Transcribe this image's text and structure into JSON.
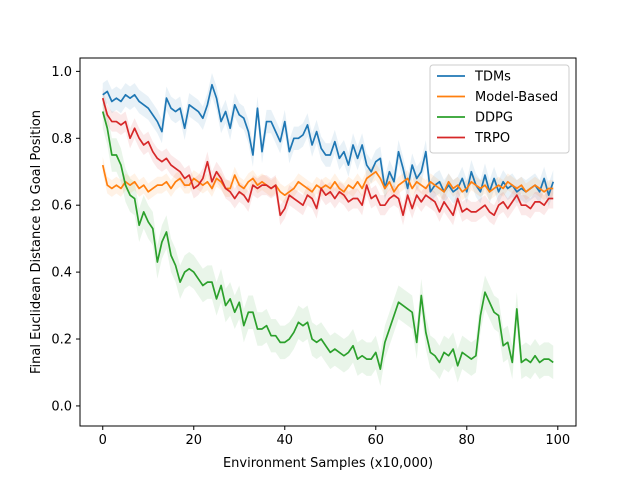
{
  "chart_data": {
    "type": "line",
    "xlabel": "Environment Samples (x10,000)",
    "ylabel": "Final Euclidean Distance to Goal Position",
    "xlim": [
      -5,
      104
    ],
    "ylim": [
      -0.06,
      1.04
    ],
    "xticks": [
      0,
      20,
      40,
      60,
      80,
      100
    ],
    "yticks": [
      0.0,
      0.2,
      0.4,
      0.6,
      0.8,
      1.0
    ],
    "xtick_labels": [
      "0",
      "20",
      "40",
      "60",
      "80",
      "100"
    ],
    "ytick_labels": [
      "0.0",
      "0.2",
      "0.4",
      "0.6",
      "0.8",
      "1.0"
    ],
    "grid": false,
    "legend_position": "top-right",
    "x": [
      0,
      1,
      2,
      3,
      4,
      5,
      6,
      7,
      8,
      9,
      10,
      11,
      12,
      13,
      14,
      15,
      16,
      17,
      18,
      19,
      20,
      21,
      22,
      23,
      24,
      25,
      26,
      27,
      28,
      29,
      30,
      31,
      32,
      33,
      34,
      35,
      36,
      37,
      38,
      39,
      40,
      41,
      42,
      43,
      44,
      45,
      46,
      47,
      48,
      49,
      50,
      51,
      52,
      53,
      54,
      55,
      56,
      57,
      58,
      59,
      60,
      61,
      62,
      63,
      64,
      65,
      66,
      67,
      68,
      69,
      70,
      71,
      72,
      73,
      74,
      75,
      76,
      77,
      78,
      79,
      80,
      81,
      82,
      83,
      84,
      85,
      86,
      87,
      88,
      89,
      90,
      91,
      92,
      93,
      94,
      95,
      96,
      97,
      98,
      99
    ],
    "series": [
      {
        "name": "TDMs",
        "color": "#1f77b4",
        "values": [
          0.93,
          0.94,
          0.91,
          0.92,
          0.91,
          0.93,
          0.92,
          0.93,
          0.91,
          0.9,
          0.89,
          0.87,
          0.85,
          0.82,
          0.92,
          0.89,
          0.88,
          0.89,
          0.83,
          0.9,
          0.89,
          0.88,
          0.86,
          0.9,
          0.96,
          0.92,
          0.85,
          0.88,
          0.83,
          0.9,
          0.87,
          0.86,
          0.82,
          0.75,
          0.89,
          0.76,
          0.85,
          0.85,
          0.82,
          0.79,
          0.85,
          0.76,
          0.8,
          0.8,
          0.81,
          0.84,
          0.78,
          0.82,
          0.77,
          0.75,
          0.75,
          0.79,
          0.74,
          0.76,
          0.72,
          0.78,
          0.74,
          0.78,
          0.72,
          0.7,
          0.73,
          0.74,
          0.65,
          0.7,
          0.67,
          0.76,
          0.71,
          0.65,
          0.72,
          0.68,
          0.7,
          0.76,
          0.64,
          0.66,
          0.67,
          0.64,
          0.66,
          0.64,
          0.65,
          0.68,
          0.64,
          0.7,
          0.66,
          0.64,
          0.69,
          0.64,
          0.68,
          0.64,
          0.67,
          0.65,
          0.66,
          0.64,
          0.65,
          0.64,
          0.65,
          0.66,
          0.64,
          0.68,
          0.63,
          0.67
        ],
        "band": 0.035
      },
      {
        "name": "Model-Based",
        "color": "#ff7f0e",
        "values": [
          0.72,
          0.66,
          0.65,
          0.66,
          0.65,
          0.67,
          0.66,
          0.67,
          0.65,
          0.66,
          0.64,
          0.65,
          0.66,
          0.66,
          0.67,
          0.65,
          0.67,
          0.68,
          0.66,
          0.66,
          0.68,
          0.67,
          0.66,
          0.67,
          0.65,
          0.68,
          0.67,
          0.65,
          0.65,
          0.69,
          0.66,
          0.65,
          0.67,
          0.68,
          0.66,
          0.67,
          0.66,
          0.65,
          0.66,
          0.64,
          0.63,
          0.64,
          0.65,
          0.67,
          0.66,
          0.65,
          0.64,
          0.66,
          0.65,
          0.66,
          0.65,
          0.67,
          0.65,
          0.64,
          0.66,
          0.65,
          0.67,
          0.65,
          0.68,
          0.69,
          0.7,
          0.68,
          0.65,
          0.67,
          0.64,
          0.66,
          0.67,
          0.68,
          0.65,
          0.67,
          0.66,
          0.65,
          0.67,
          0.66,
          0.65,
          0.64,
          0.67,
          0.65,
          0.66,
          0.64,
          0.65,
          0.67,
          0.66,
          0.65,
          0.66,
          0.64,
          0.65,
          0.66,
          0.65,
          0.67,
          0.66,
          0.65,
          0.66,
          0.64,
          0.65,
          0.66,
          0.65,
          0.64,
          0.65,
          0.65
        ],
        "band": 0.025
      },
      {
        "name": "DDPG",
        "color": "#2ca02c",
        "values": [
          0.88,
          0.83,
          0.75,
          0.75,
          0.72,
          0.66,
          0.63,
          0.62,
          0.54,
          0.58,
          0.55,
          0.53,
          0.43,
          0.49,
          0.52,
          0.45,
          0.42,
          0.37,
          0.4,
          0.41,
          0.4,
          0.38,
          0.36,
          0.37,
          0.37,
          0.32,
          0.36,
          0.3,
          0.32,
          0.28,
          0.31,
          0.24,
          0.28,
          0.28,
          0.23,
          0.23,
          0.24,
          0.21,
          0.21,
          0.19,
          0.19,
          0.2,
          0.22,
          0.25,
          0.24,
          0.25,
          0.2,
          0.19,
          0.2,
          0.18,
          0.16,
          0.17,
          0.16,
          0.15,
          0.16,
          0.18,
          0.14,
          0.15,
          0.14,
          0.14,
          0.16,
          0.11,
          0.19,
          0.23,
          0.27,
          0.31,
          0.3,
          0.29,
          0.28,
          0.19,
          0.33,
          0.22,
          0.16,
          0.15,
          0.13,
          0.16,
          0.15,
          0.17,
          0.12,
          0.16,
          0.15,
          0.14,
          0.15,
          0.27,
          0.34,
          0.31,
          0.28,
          0.27,
          0.18,
          0.19,
          0.13,
          0.29,
          0.13,
          0.14,
          0.13,
          0.15,
          0.13,
          0.14,
          0.14,
          0.13
        ],
        "band": 0.05
      },
      {
        "name": "TRPO",
        "color": "#d62728",
        "values": [
          0.92,
          0.87,
          0.85,
          0.85,
          0.84,
          0.85,
          0.8,
          0.83,
          0.8,
          0.78,
          0.79,
          0.76,
          0.74,
          0.73,
          0.74,
          0.72,
          0.71,
          0.7,
          0.68,
          0.69,
          0.65,
          0.66,
          0.68,
          0.73,
          0.67,
          0.7,
          0.68,
          0.65,
          0.64,
          0.62,
          0.64,
          0.63,
          0.61,
          0.66,
          0.65,
          0.66,
          0.66,
          0.65,
          0.66,
          0.57,
          0.59,
          0.63,
          0.62,
          0.61,
          0.6,
          0.63,
          0.62,
          0.59,
          0.65,
          0.63,
          0.64,
          0.62,
          0.64,
          0.63,
          0.61,
          0.62,
          0.62,
          0.6,
          0.66,
          0.62,
          0.63,
          0.6,
          0.6,
          0.62,
          0.63,
          0.62,
          0.57,
          0.63,
          0.59,
          0.63,
          0.61,
          0.63,
          0.62,
          0.61,
          0.58,
          0.61,
          0.59,
          0.57,
          0.62,
          0.58,
          0.59,
          0.58,
          0.58,
          0.59,
          0.6,
          0.58,
          0.57,
          0.6,
          0.61,
          0.59,
          0.61,
          0.63,
          0.6,
          0.6,
          0.59,
          0.61,
          0.61,
          0.6,
          0.62,
          0.62
        ],
        "band": 0.03
      }
    ]
  }
}
